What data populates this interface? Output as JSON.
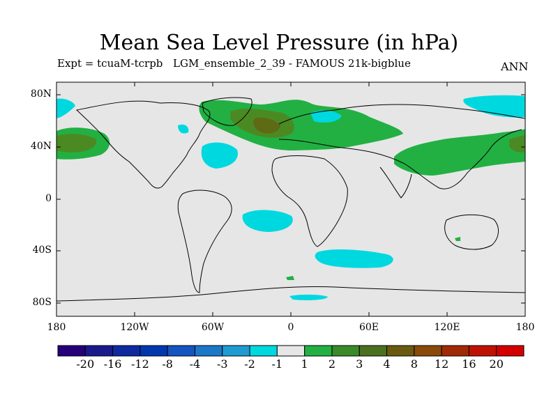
{
  "header": {
    "title": "Mean Sea Level Pressure (in hPa)",
    "experiment": "Expt = tcuaM-tcrpb",
    "ensemble": "LGM_ensemble_2_39 - FAMOUS 21k-bigblue",
    "season": "ANN"
  },
  "axes": {
    "lat_labels": [
      "80N",
      "40N",
      "0",
      "40S",
      "80S"
    ],
    "lon_labels": [
      "180",
      "120W",
      "60W",
      "0",
      "60E",
      "120E",
      "180"
    ]
  },
  "colors": {
    "ocean_land_neutral": "#e6e6e6",
    "neg_light": "#00d8e0",
    "pos_light": "#22b043",
    "pos_mid": "#4b8a23",
    "pos_dark": "#5e6a14",
    "frame": "#000000"
  },
  "colorbar": {
    "colors": [
      "#26007a",
      "#1a1a8c",
      "#0f2aa0",
      "#0038b0",
      "#1455c0",
      "#1b78c8",
      "#1f9bd2",
      "#00d8e0",
      "#e6e6e6",
      "#22b043",
      "#3a8a2a",
      "#4b7020",
      "#6a5a10",
      "#8a4a0a",
      "#a02a06",
      "#c01204",
      "#d40000"
    ],
    "labels": [
      "-20",
      "-16",
      "-12",
      "-8",
      "-4",
      "-3",
      "-2",
      "-1",
      "1",
      "2",
      "3",
      "4",
      "8",
      "12",
      "16",
      "20"
    ]
  }
}
